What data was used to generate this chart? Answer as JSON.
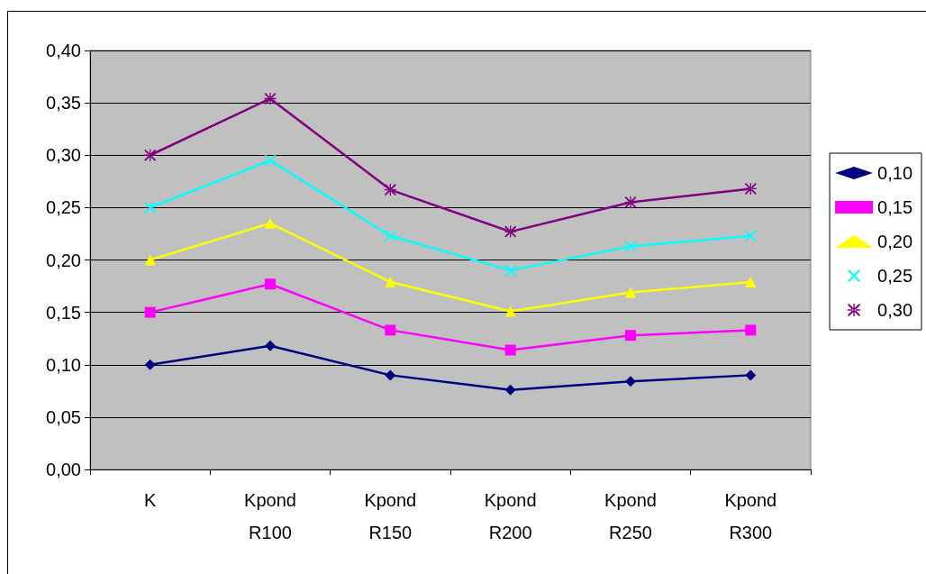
{
  "chart_data": {
    "type": "line",
    "categories": [
      "K",
      "Kpond\nR100",
      "Kpond\nR150",
      "Kpond\nR200",
      "Kpond\nR250",
      "Kpond\nR300"
    ],
    "series": [
      {
        "name": "0,10",
        "color": "#000080",
        "marker": "diamond",
        "values": [
          0.1,
          0.118,
          0.09,
          0.076,
          0.084,
          0.09
        ]
      },
      {
        "name": "0,15",
        "color": "#ff00ff",
        "marker": "square",
        "values": [
          0.15,
          0.177,
          0.133,
          0.114,
          0.128,
          0.133
        ]
      },
      {
        "name": "0,20",
        "color": "#ffff00",
        "marker": "triangle",
        "values": [
          0.2,
          0.235,
          0.179,
          0.151,
          0.169,
          0.179
        ]
      },
      {
        "name": "0,25",
        "color": "#00ffff",
        "marker": "cross",
        "values": [
          0.25,
          0.295,
          0.223,
          0.19,
          0.213,
          0.223
        ]
      },
      {
        "name": "0,30",
        "color": "#800080",
        "marker": "star",
        "values": [
          0.3,
          0.354,
          0.267,
          0.227,
          0.255,
          0.268
        ]
      }
    ],
    "ylim": [
      0,
      0.4
    ],
    "yticks": [
      {
        "value": 0,
        "label": "0,00"
      },
      {
        "value": 0.05,
        "label": "0,05"
      },
      {
        "value": 0.1,
        "label": "0,10"
      },
      {
        "value": 0.15,
        "label": "0,15"
      },
      {
        "value": 0.2,
        "label": "0,20"
      },
      {
        "value": 0.25,
        "label": "0,25"
      },
      {
        "value": 0.3,
        "label": "0,30"
      },
      {
        "value": 0.35,
        "label": "0,35"
      },
      {
        "value": 0.4,
        "label": "0,40"
      }
    ],
    "grid": "y",
    "legend": "right",
    "line_style": "solid"
  }
}
